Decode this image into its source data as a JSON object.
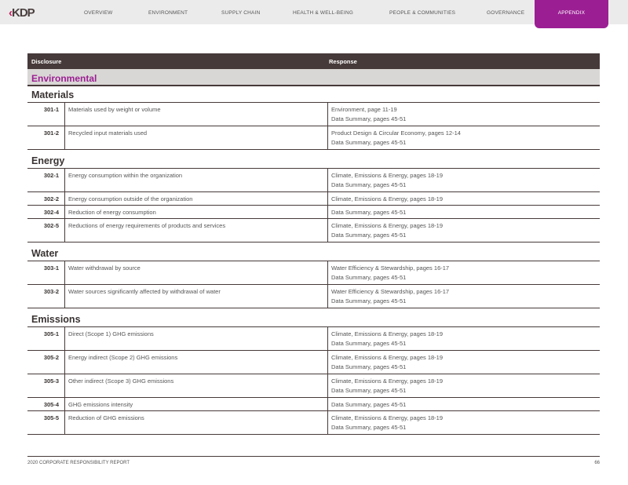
{
  "nav": {
    "logo": "KDP",
    "items": [
      "OVERVIEW",
      "ENVIRONMENT",
      "SUPPLY CHAIN",
      "HEALTH & WELL-BEING",
      "PEOPLE & COMMUNITIES",
      "GOVERNANCE",
      "APPENDIX"
    ],
    "active": "APPENDIX"
  },
  "table": {
    "headers": {
      "disclosure": "Disclosure",
      "response": "Response"
    },
    "category": "Environmental",
    "sections": [
      {
        "title": "Materials",
        "rows": [
          {
            "code": "301-1",
            "desc": "Materials used by weight or volume",
            "resp": [
              "Environment, page 11-19",
              "Data Summary, pages 45-51"
            ]
          },
          {
            "code": "301-2",
            "desc": "Recycled input materials used",
            "resp": [
              "Product Design & Circular Economy, pages 12-14",
              "Data Summary, pages 45-51"
            ]
          }
        ]
      },
      {
        "title": "Energy",
        "rows": [
          {
            "code": "302-1",
            "desc": "Energy consumption within the organization",
            "resp": [
              "Climate, Emissions & Energy, pages 18-19",
              "Data Summary, pages 45-51"
            ]
          },
          {
            "code": "302-2",
            "desc": "Energy consumption outside of the organization",
            "resp": [
              "Climate, Emissions & Energy, pages 18-19"
            ]
          },
          {
            "code": "302-4",
            "desc": "Reduction of energy consumption",
            "resp": [
              "Data Summary, pages 45-51"
            ]
          },
          {
            "code": "302-5",
            "desc": "Reductions of energy requirements of products and services",
            "resp": [
              "Climate, Emissions & Energy, pages 18-19",
              "Data Summary, pages 45-51"
            ]
          }
        ]
      },
      {
        "title": "Water",
        "rows": [
          {
            "code": "303-1",
            "desc": "Water withdrawal by source",
            "resp": [
              "Water Efficiency & Stewardship, pages 16-17",
              "Data Summary, pages 45-51"
            ]
          },
          {
            "code": "303-2",
            "desc": "Water sources significantly affected by withdrawal of water",
            "resp": [
              "Water Efficiency & Stewardship, pages 16-17",
              "Data Summary, pages 45-51"
            ]
          }
        ]
      },
      {
        "title": "Emissions",
        "rows": [
          {
            "code": "305-1",
            "desc": "Direct (Scope 1) GHG emissions",
            "resp": [
              "Climate, Emissions & Energy, pages 18-19",
              "Data Summary, pages 45-51"
            ]
          },
          {
            "code": "305-2",
            "desc": "Energy indirect (Scope 2) GHG emissions",
            "resp": [
              "Climate, Emissions & Energy, pages 18-19",
              "Data Summary, pages 45-51"
            ]
          },
          {
            "code": "305-3",
            "desc": "Other indirect (Scope 3) GHG emissions",
            "resp": [
              "Climate, Emissions & Energy, pages 18-19",
              "Data Summary, pages 45-51"
            ]
          },
          {
            "code": "305-4",
            "desc": "GHG emissions intensity",
            "resp": [
              "Data Summary, pages 45-51"
            ]
          },
          {
            "code": "305-5",
            "desc": "Reduction of GHG emissions",
            "resp": [
              "Climate, Emissions & Energy, pages 18-19",
              "Data Summary, pages 45-51"
            ]
          }
        ]
      }
    ]
  },
  "footer": {
    "title": "2020 CORPORATE RESPONSIBILITY REPORT",
    "page": "66"
  },
  "colors": {
    "accent": "#9b1f93",
    "header": "#473a3a",
    "category_bg": "#d9d7d5"
  }
}
